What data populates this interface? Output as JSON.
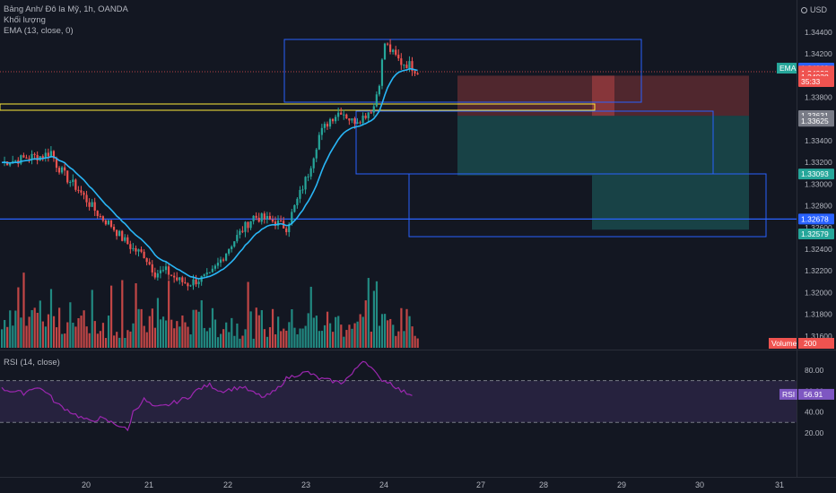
{
  "header": {
    "symbol_line": "Bảng Anh/ Đô la Mỹ, 1h, OANDA",
    "volume_label": "Khối lượng",
    "ema_label": "EMA (13, close, 0)",
    "currency": "USD"
  },
  "rsi_panel": {
    "label": "RSI (14, close)",
    "value_tag": "RSI",
    "value": "56.91",
    "ticks": [
      "80.00",
      "60.00",
      "40.00",
      "20.00"
    ]
  },
  "price_axis": {
    "ticks": [
      "1.34400",
      "1.34200",
      "1.34000",
      "1.33800",
      "1.33600",
      "1.33400",
      "1.33200",
      "1.33000",
      "1.32800",
      "1.32600",
      "1.32400",
      "1.32200",
      "1.32000",
      "1.31800",
      "1.31600"
    ],
    "tags": [
      {
        "text": "1.34069",
        "bg": "#2962ff",
        "fg": "#ffffff",
        "price": 1.34069,
        "label": "EMA",
        "label_bg": "#26a69a"
      },
      {
        "text": "1.34043",
        "bg": "#ef5350",
        "fg": "#ffffff",
        "price": 1.34043
      },
      {
        "text": "1.34038",
        "bg": "#ef5350",
        "fg": "#ffffff",
        "price": 1.3402
      },
      {
        "text": "1.34038",
        "bg": "#ef5350",
        "fg": "#ffffff",
        "price": 1.33985
      },
      {
        "text": "35:33",
        "bg": "#ef5350",
        "fg": "#ffffff",
        "price": 1.33945
      },
      {
        "text": "1.33631",
        "bg": "#787b86",
        "fg": "#ffffff",
        "price": 1.33631
      },
      {
        "text": "1.33625",
        "bg": "#787b86",
        "fg": "#ffffff",
        "price": 1.3358
      },
      {
        "text": "1.33093",
        "bg": "#26a69a",
        "fg": "#ffffff",
        "price": 1.33093
      },
      {
        "text": "1.32678",
        "bg": "#2962ff",
        "fg": "#ffffff",
        "price": 1.32678
      },
      {
        "text": "1.32579",
        "bg": "#26a69a",
        "fg": "#ffffff",
        "price": 1.3254
      }
    ],
    "volume_tag": "Volume",
    "volume_value": "200"
  },
  "time_axis": {
    "labels": [
      "20",
      "21",
      "22",
      "23",
      "24",
      "27",
      "28",
      "29",
      "30",
      "31"
    ]
  },
  "colors": {
    "background": "#131722",
    "up": "#26a69a",
    "down": "#ef5350",
    "ema": "#29b6f6",
    "rsi": "#9c27b0",
    "hline": "#2962ff",
    "box": "#2962ff",
    "yellow": "#ffeb3b"
  },
  "chart_data": {
    "type": "candlestick",
    "symbol": "GBP/USD",
    "timeframe": "1h",
    "ylim": [
      1.315,
      1.345
    ],
    "horizontal_line": 1.32678,
    "ema_period": 13,
    "rsi_period": 14,
    "rsi_last": 56.91,
    "rsi_bands": [
      70,
      30
    ],
    "close_path": [
      [
        0,
        1.332
      ],
      [
        5,
        1.3322
      ],
      [
        10,
        1.3325
      ],
      [
        15,
        1.3326
      ],
      [
        18,
        1.333
      ],
      [
        20,
        1.3318
      ],
      [
        24,
        1.3305
      ],
      [
        28,
        1.3295
      ],
      [
        32,
        1.3282
      ],
      [
        36,
        1.327
      ],
      [
        40,
        1.3262
      ],
      [
        44,
        1.325
      ],
      [
        48,
        1.324
      ],
      [
        52,
        1.3235
      ],
      [
        56,
        1.3218
      ],
      [
        60,
        1.322
      ],
      [
        64,
        1.3212
      ],
      [
        68,
        1.3208
      ],
      [
        72,
        1.3212
      ],
      [
        76,
        1.3215
      ],
      [
        80,
        1.323
      ],
      [
        84,
        1.3245
      ],
      [
        88,
        1.3258
      ],
      [
        92,
        1.327
      ],
      [
        96,
        1.3268
      ],
      [
        100,
        1.3265
      ],
      [
        104,
        1.326
      ],
      [
        108,
        1.3285
      ],
      [
        112,
        1.331
      ],
      [
        116,
        1.3345
      ],
      [
        120,
        1.336
      ],
      [
        124,
        1.3368
      ],
      [
        128,
        1.3358
      ],
      [
        132,
        1.3362
      ],
      [
        136,
        1.3372
      ],
      [
        138,
        1.3395
      ],
      [
        140,
        1.343
      ],
      [
        143,
        1.342
      ],
      [
        146,
        1.3412
      ],
      [
        149,
        1.341
      ],
      [
        152,
        1.3404
      ]
    ],
    "rsi_path": [
      [
        0,
        62
      ],
      [
        4,
        60
      ],
      [
        8,
        58
      ],
      [
        12,
        64
      ],
      [
        16,
        60
      ],
      [
        20,
        48
      ],
      [
        24,
        42
      ],
      [
        28,
        36
      ],
      [
        32,
        31
      ],
      [
        36,
        34
      ],
      [
        40,
        30
      ],
      [
        44,
        26
      ],
      [
        46,
        22
      ],
      [
        48,
        40
      ],
      [
        52,
        52
      ],
      [
        56,
        44
      ],
      [
        60,
        46
      ],
      [
        64,
        50
      ],
      [
        68,
        54
      ],
      [
        72,
        62
      ],
      [
        76,
        66
      ],
      [
        80,
        60
      ],
      [
        84,
        62
      ],
      [
        88,
        64
      ],
      [
        92,
        58
      ],
      [
        96,
        54
      ],
      [
        100,
        60
      ],
      [
        104,
        72
      ],
      [
        108,
        76
      ],
      [
        112,
        78
      ],
      [
        116,
        72
      ],
      [
        120,
        70
      ],
      [
        124,
        68
      ],
      [
        128,
        76
      ],
      [
        132,
        90
      ],
      [
        134,
        86
      ],
      [
        138,
        72
      ],
      [
        142,
        68
      ],
      [
        146,
        60
      ],
      [
        150,
        56.91
      ]
    ]
  }
}
